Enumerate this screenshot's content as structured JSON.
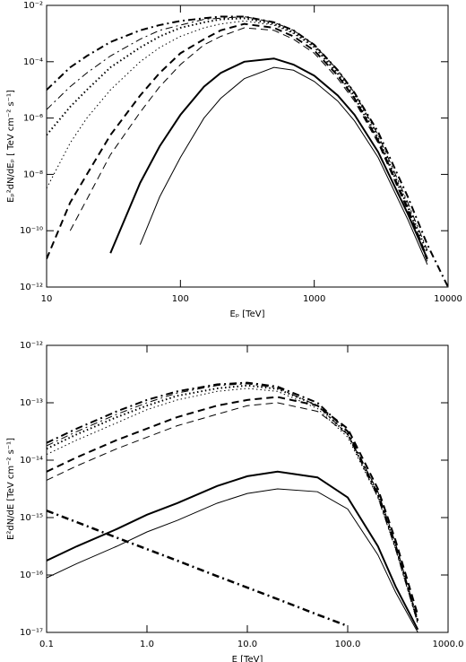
{
  "chart_data": [
    {
      "type": "line",
      "xscale": "log",
      "yscale": "log",
      "x_label": "Eₚ [TeV]",
      "y_label": "Eₚ²dN/dEₚ [ TeV cm⁻² s⁻¹]",
      "xlim": [
        10,
        10000
      ],
      "ylim": [
        1e-12,
        0.01
      ],
      "xticks": [
        10,
        100,
        1000,
        10000
      ],
      "yticks": [
        {
          "value": 1e-12,
          "label": "10⁻¹²"
        },
        {
          "value": 1e-10,
          "label": "10⁻¹⁰"
        },
        {
          "value": 1e-08,
          "label": "10⁻⁸"
        },
        {
          "value": 1e-06,
          "label": "10⁻⁶"
        },
        {
          "value": 0.0001,
          "label": "10⁻⁴"
        },
        {
          "value": 0.01,
          "label": "10⁻²"
        }
      ],
      "x": [
        10,
        15,
        20,
        30,
        50,
        70,
        100,
        150,
        200,
        300,
        500,
        700,
        1000,
        1500,
        2000,
        3000,
        5000,
        7000,
        10000
      ],
      "series": [
        {
          "color": "#000000",
          "style": "dashdot",
          "width": 2,
          "values": [
            1e-05,
            6.3e-05,
            0.00016,
            0.0005,
            0.0013,
            0.002,
            0.0028,
            0.0035,
            0.004,
            0.004,
            0.0025,
            0.0013,
            0.0004,
            5e-05,
            7.9e-06,
            3.2e-07,
            1.6e-09,
            3.2e-11,
            1e-12
          ]
        },
        {
          "color": "#000000",
          "style": "dashdot",
          "width": 1,
          "values": [
            2e-06,
            1.3e-05,
            4e-05,
            0.00016,
            0.00063,
            0.0013,
            0.002,
            0.0032,
            0.0035,
            0.004,
            0.0025,
            0.0013,
            0.0004,
            5e-05,
            7.9e-06,
            2.5e-07,
            1e-09,
            2e-11,
            null
          ]
        },
        {
          "color": "#000000",
          "style": "dotted",
          "width": 2,
          "values": [
            2.5e-07,
            2.5e-06,
            1e-05,
            6.3e-05,
            0.00032,
            0.00079,
            0.0016,
            0.0025,
            0.0032,
            0.0035,
            0.0022,
            0.0011,
            0.00035,
            4e-05,
            6.3e-06,
            2e-07,
            7.9e-10,
            1.6e-11,
            null
          ]
        },
        {
          "color": "#000000",
          "style": "dotted",
          "width": 1,
          "values": [
            3.2e-09,
            1.3e-07,
            1e-06,
            1e-05,
            0.0001,
            0.00032,
            0.00079,
            0.0016,
            0.0022,
            0.0028,
            0.002,
            0.001,
            0.00032,
            3.5e-05,
            5e-06,
            1.6e-07,
            6.3e-10,
            1e-11,
            null
          ]
        },
        {
          "color": "#000000",
          "style": "dashed",
          "width": 2,
          "values": [
            1e-11,
            1e-09,
            1e-08,
            2.5e-07,
            6.3e-06,
            4e-05,
            0.0002,
            0.00063,
            0.0013,
            0.0022,
            0.0016,
            0.00079,
            0.00025,
            3.2e-05,
            5e-06,
            1.6e-07,
            6.3e-10,
            1e-11,
            null
          ]
        },
        {
          "color": "#000000",
          "style": "dashed",
          "width": 1,
          "values": [
            null,
            1e-10,
            1.3e-09,
            5e-08,
            1.6e-06,
            1.3e-05,
            7.9e-05,
            0.0004,
            0.00079,
            0.0016,
            0.0013,
            0.00063,
            0.0002,
            2.5e-05,
            4e-06,
            1.3e-07,
            5e-10,
            7.9e-12,
            null
          ]
        },
        {
          "color": "#000000",
          "style": "solid",
          "width": 2,
          "values": [
            null,
            null,
            null,
            1.6e-11,
            5e-09,
            1e-07,
            1.3e-06,
            1.3e-05,
            4e-05,
            0.0001,
            0.00013,
            7.9e-05,
            3.2e-05,
            6.3e-06,
            1.3e-06,
            6.3e-08,
            4e-10,
            1e-11,
            null
          ]
        },
        {
          "color": "#000000",
          "style": "solid",
          "width": 1,
          "values": [
            null,
            null,
            null,
            null,
            3.2e-11,
            1.6e-09,
            4e-08,
            1e-06,
            5e-06,
            2.5e-05,
            6.3e-05,
            5e-05,
            2e-05,
            4e-06,
            7.9e-07,
            4e-08,
            2.5e-10,
            6.3e-12,
            null
          ]
        }
      ]
    },
    {
      "type": "line",
      "xscale": "log",
      "yscale": "log",
      "x_label": "E [TeV]",
      "y_label": "E²dN/dE [TeV cm⁻² s⁻¹]",
      "xlim": [
        0.1,
        1000
      ],
      "ylim": [
        1e-17,
        1e-12
      ],
      "xticks": [
        0.1,
        {
          "value": 1,
          "label": "1.0"
        },
        {
          "value": 10,
          "label": "10.0"
        },
        {
          "value": 100,
          "label": "100.0"
        },
        {
          "value": 1000,
          "label": "1000.0"
        }
      ],
      "yticks": [
        {
          "value": 1e-17,
          "label": "10⁻¹⁷"
        },
        {
          "value": 1e-16,
          "label": "10⁻¹⁶"
        },
        {
          "value": 1e-15,
          "label": "10⁻¹⁵"
        },
        {
          "value": 1e-14,
          "label": "10⁻¹⁴"
        },
        {
          "value": 1e-13,
          "label": "10⁻¹³"
        },
        {
          "value": 1e-12,
          "label": "10⁻¹²"
        }
      ],
      "x": [
        0.1,
        0.2,
        0.5,
        1,
        2,
        5,
        10,
        20,
        50,
        100,
        200,
        300,
        500
      ],
      "series": [
        {
          "color": "#000000",
          "style": "dashdot",
          "width": 2,
          "values": [
            2e-14,
            3.55e-14,
            7.08e-14,
            1.12e-13,
            1.58e-13,
            2.09e-13,
            2.24e-13,
            1.91e-13,
            1e-13,
            3.16e-14,
            2.51e-15,
            3.16e-16,
            1.58e-17
          ]
        },
        {
          "color": "#000000",
          "style": "dashdot",
          "width": 1,
          "values": [
            1.78e-14,
            3.16e-14,
            6.31e-14,
            1e-13,
            1.48e-13,
            2e-13,
            2.14e-13,
            1.82e-13,
            8.91e-14,
            2.82e-14,
            2.24e-15,
            2.82e-16,
            1.41e-17
          ]
        },
        {
          "color": "#000000",
          "style": "dotted",
          "width": 2,
          "values": [
            1.58e-14,
            2.82e-14,
            5.62e-14,
            8.91e-14,
            1.32e-13,
            1.78e-13,
            2e-13,
            1.74e-13,
            8.91e-14,
            2.82e-14,
            2.51e-15,
            3.16e-16,
            1.58e-17
          ]
        },
        {
          "color": "#000000",
          "style": "dotted",
          "width": 1,
          "values": [
            1.26e-14,
            2.24e-14,
            4.47e-14,
            7.59e-14,
            1.12e-13,
            1.58e-13,
            1.78e-13,
            1.58e-13,
            7.94e-14,
            2.51e-14,
            2.24e-15,
            2.82e-16,
            1.41e-17
          ]
        },
        {
          "color": "#000000",
          "style": "dashed",
          "width": 2,
          "values": [
            6.31e-15,
            1.12e-14,
            2.24e-14,
            3.55e-14,
            5.62e-14,
            8.91e-14,
            1.12e-13,
            1.26e-13,
            8.91e-14,
            3.55e-14,
            3.16e-15,
            3.98e-16,
            2e-17
          ]
        },
        {
          "color": "#000000",
          "style": "dashed",
          "width": 1,
          "values": [
            4.47e-15,
            7.94e-15,
            1.58e-14,
            2.51e-14,
            3.98e-14,
            6.31e-14,
            8.91e-14,
            1e-13,
            7.08e-14,
            2.82e-14,
            2.82e-15,
            3.55e-16,
            1.58e-17
          ]
        },
        {
          "color": "#000000",
          "style": "solid",
          "width": 2,
          "values": [
            1.78e-16,
            3.16e-16,
            6.31e-16,
            1.12e-15,
            1.78e-15,
            3.55e-15,
            5.25e-15,
            6.31e-15,
            5.01e-15,
            2.24e-15,
            3.16e-16,
            6.31e-17,
            1.12e-17
          ]
        },
        {
          "color": "#000000",
          "style": "solid",
          "width": 1,
          "values": [
            8.91e-17,
            1.58e-16,
            3.16e-16,
            5.62e-16,
            8.91e-16,
            1.78e-15,
            2.63e-15,
            3.16e-15,
            2.82e-15,
            1.41e-15,
            2.24e-16,
            5.01e-17,
            1e-17
          ]
        },
        {
          "color": "#000000",
          "style": "dashdot",
          "width": 2.5,
          "values": [
            1.32e-15,
            8.32e-16,
            4.47e-16,
            2.82e-16,
            1.78e-16,
            9.55e-17,
            6.03e-17,
            3.8e-17,
            2.04e-17,
            1.29e-17,
            null,
            null,
            null
          ]
        }
      ]
    }
  ]
}
